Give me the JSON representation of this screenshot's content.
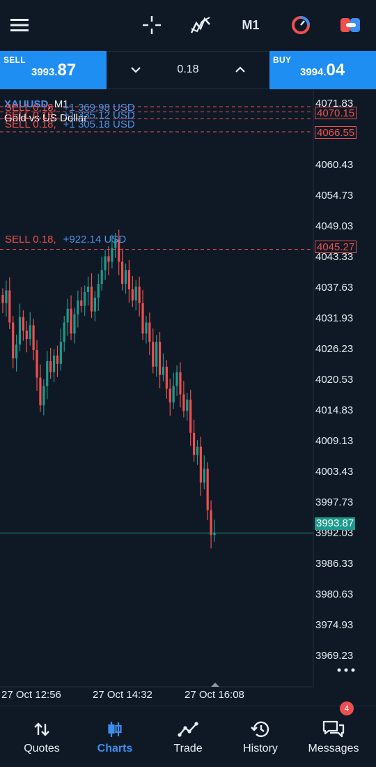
{
  "toolbar": {
    "menu_icon": "hamburger-icon",
    "crosshair_icon": "crosshair-icon",
    "indicators_icon": "indicators-icon",
    "timeframe": "M1",
    "one_click_icon": "one-click-trading-icon",
    "order_icon": "order-icon",
    "accent": "#1e8ef3"
  },
  "trade": {
    "sell_label": "SELL",
    "sell_price_main": "3993.",
    "sell_price_big": "87",
    "buy_label": "BUY",
    "buy_price_main": "3994.",
    "buy_price_big": "04",
    "volume": "0.18"
  },
  "chart": {
    "symbol": "XAUUSD",
    "separator": ", ",
    "timeframe": "M1",
    "description": "Gold vs US Dollar",
    "orders": [
      {
        "side": "SELL 0.18,",
        "pnl": "+1 369.98 USD"
      },
      {
        "side": "SELL 0.18,",
        "pnl": "+1 335.12 USD"
      },
      {
        "side": "SELL 0.18,",
        "pnl": "+1 305.18 USD"
      },
      {
        "side": "SELL 0.18,",
        "pnl": "+922.14 USD"
      }
    ],
    "order_price_tags": [
      "4070.15",
      "4066.55",
      "4045.27"
    ],
    "current_price_tag": "3993.87",
    "y_labels": [
      "4071.83",
      "4060.43",
      "4054.73",
      "4049.03",
      "4043.33",
      "4037.63",
      "4031.93",
      "4026.23",
      "4020.53",
      "4014.83",
      "4009.13",
      "4003.43",
      "3997.73",
      "3992.03",
      "3986.33",
      "3980.63",
      "3974.93",
      "3969.23"
    ],
    "x_labels": [
      "27 Oct 12:56",
      "27 Oct 14:32",
      "27 Oct 16:08"
    ],
    "colors": {
      "bull": "#1c9a8d",
      "bear": "#ef4f4f",
      "order_line": "#ef4f4f",
      "current_line": "#1c9a8d"
    }
  },
  "chart_data": {
    "type": "candlestick",
    "series_close": [
      4035.5,
      4037.8,
      4032.0,
      4025.5,
      4028.0,
      4033.0,
      4030.5,
      4029.0,
      4031.5,
      4027.0,
      4022.0,
      4017.0,
      4020.5,
      4025.0,
      4023.0,
      4026.0,
      4024.5,
      4028.5,
      4032.0,
      4034.5,
      4030.0,
      4033.5,
      4036.0,
      4035.0,
      4037.5,
      4038.5,
      4034.0,
      4036.5,
      4039.0,
      4041.5,
      4044.0,
      4043.0,
      4045.5,
      4047.0,
      4043.0,
      4039.0,
      4041.5,
      4038.0,
      4036.0,
      4038.5,
      4035.5,
      4030.0,
      4032.0,
      4028.5,
      4024.0,
      4028.5,
      4022.5,
      4024.0,
      4020.0,
      4017.5,
      4020.5,
      4023.0,
      4019.0,
      4016.0,
      4018.0,
      4012.0,
      4008.0,
      4009.5,
      4003.0,
      4005.5,
      3998.0,
      3993.5,
      3993.87
    ],
    "current_price": 3993.87,
    "order_prices": [
      4070.15,
      4066.55,
      4045.27
    ],
    "ylim": [
      3966.0,
      4074.0
    ]
  },
  "nav": {
    "items": [
      {
        "label": "Quotes",
        "icon": "quotes-icon"
      },
      {
        "label": "Charts",
        "icon": "charts-icon"
      },
      {
        "label": "Trade",
        "icon": "trade-icon"
      },
      {
        "label": "History",
        "icon": "history-icon"
      },
      {
        "label": "Messages",
        "icon": "messages-icon"
      }
    ],
    "messages_badge": "4"
  }
}
